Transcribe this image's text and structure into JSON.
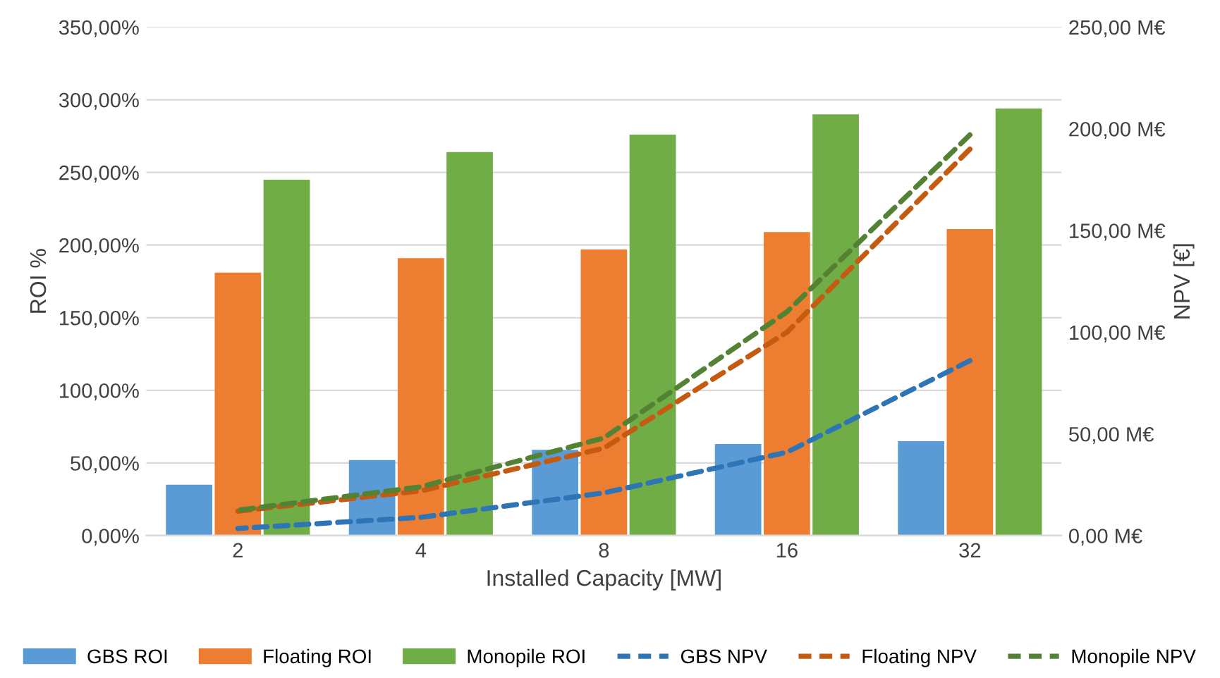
{
  "chart_data": {
    "type": "bar",
    "xlabel": "Installed Capacity [MW]",
    "ylabel": "ROI %",
    "y2label": "NPV [€]",
    "categories": [
      "2",
      "4",
      "8",
      "16",
      "32"
    ],
    "series": [
      {
        "name": "GBS ROI",
        "color": "#5b9bd5",
        "values": [
          35,
          52,
          59,
          63,
          65
        ]
      },
      {
        "name": "Floating ROI",
        "color": "#ed7d31",
        "values": [
          181,
          191,
          197,
          209,
          211
        ]
      },
      {
        "name": "Monopile ROI",
        "color": "#70ad47",
        "values": [
          245,
          264,
          276,
          290,
          294
        ]
      },
      {
        "name": "GBS NPV",
        "type": "line",
        "axis": "y2",
        "color": "#2e75b6",
        "line_style": "dashed",
        "values": [
          3.5,
          9,
          21,
          41,
          86
        ]
      },
      {
        "name": "Floating NPV",
        "type": "line",
        "axis": "y2",
        "color": "#c55a11",
        "line_style": "dashed",
        "values": [
          12,
          22,
          43,
          100,
          190
        ]
      },
      {
        "name": "Monopile NPV",
        "type": "line",
        "axis": "y2",
        "color": "#548235",
        "line_style": "dashed",
        "values": [
          12.5,
          24,
          48,
          110,
          197
        ]
      }
    ],
    "ylim": [
      0,
      350
    ],
    "yticks": [
      {
        "value": 0,
        "label": "0,00%"
      },
      {
        "value": 50,
        "label": "50,00%"
      },
      {
        "value": 100,
        "label": "100,00%"
      },
      {
        "value": 150,
        "label": "150,00%"
      },
      {
        "value": 200,
        "label": "200,00%"
      },
      {
        "value": 250,
        "label": "250,00%"
      },
      {
        "value": 300,
        "label": "300,00%"
      },
      {
        "value": 350,
        "label": "350,00%"
      }
    ],
    "y2lim": [
      0,
      250
    ],
    "y2ticks": [
      {
        "value": 0,
        "label": "0,00 M€"
      },
      {
        "value": 50,
        "label": "50,00 M€"
      },
      {
        "value": 100,
        "label": "100,00 M€"
      },
      {
        "value": 150,
        "label": "150,00 M€"
      },
      {
        "value": 200,
        "label": "200,00 M€"
      },
      {
        "value": 250,
        "label": "250,00 M€"
      }
    ],
    "grid": "y",
    "legend": "bottom",
    "marker": "none"
  }
}
